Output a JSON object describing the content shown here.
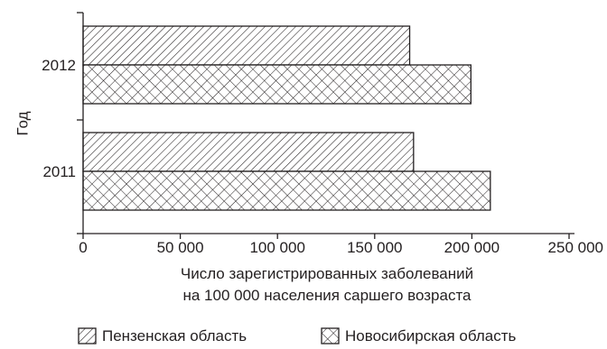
{
  "chart_data": {
    "type": "bar",
    "orientation": "horizontal",
    "categories": [
      "2012",
      "2011"
    ],
    "series": [
      {
        "name": "Пензенская область",
        "values": [
          168000,
          170000
        ],
        "pattern": "diagonal-hatch"
      },
      {
        "name": "Новосибирская область",
        "values": [
          199500,
          209500
        ],
        "pattern": "cross-hatch"
      }
    ],
    "ylabel": "Год",
    "xlabel_lines": [
      "Число зарегистрированных заболеваний",
      "на 100 000 населения саршего возраста"
    ],
    "xlim": [
      0,
      250000
    ],
    "x_ticks": [
      0,
      50000,
      100000,
      150000,
      200000,
      250000
    ],
    "x_tick_labels": [
      "0",
      "50 000",
      "100 000",
      "150 000",
      "200 000",
      "250 000"
    ],
    "grid": false,
    "legend_position": "bottom",
    "colors": {
      "ink": "#231f20",
      "background": "#ffffff"
    }
  }
}
